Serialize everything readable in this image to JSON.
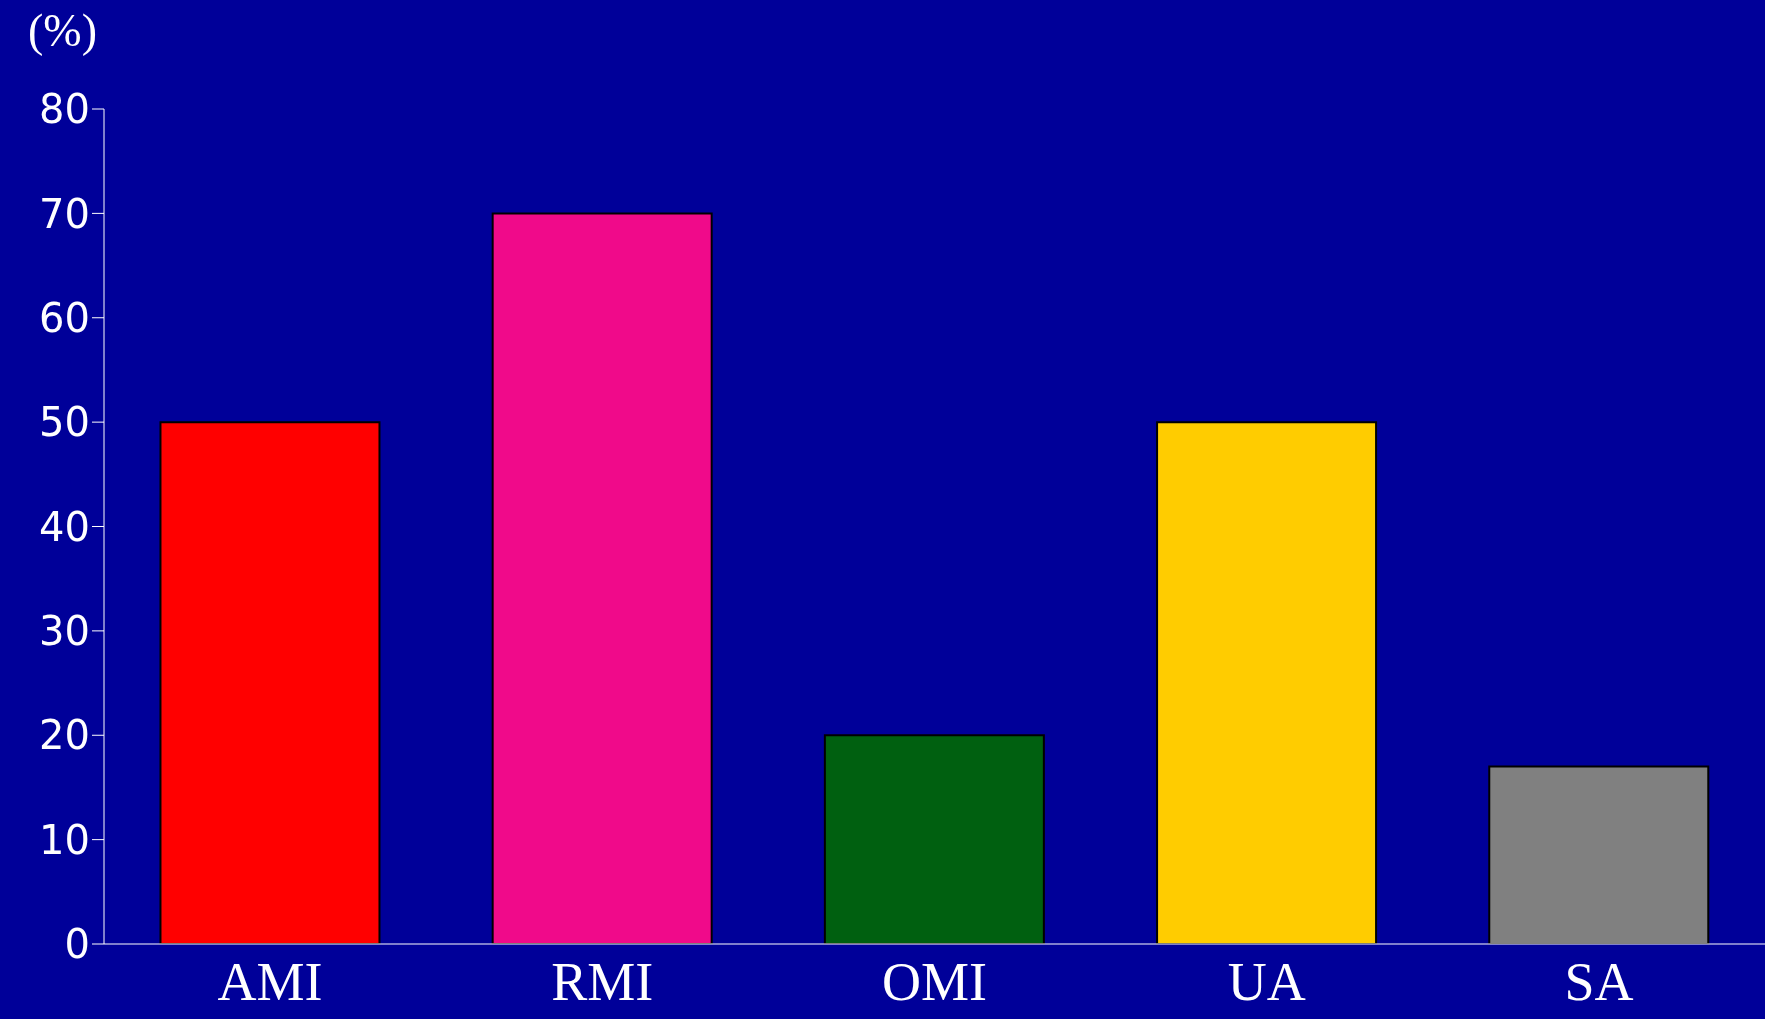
{
  "chart_data": {
    "type": "bar",
    "ylabel": "(%)",
    "categories": [
      "AMI",
      "RMI",
      "OMI",
      "UA",
      "SA"
    ],
    "values": [
      50,
      70,
      20,
      50,
      17
    ],
    "colors": [
      "#ff0000",
      "#f00a8a",
      "#006010",
      "#ffcc00",
      "#808080"
    ],
    "ylim": [
      0,
      80
    ],
    "yticks": [
      0,
      10,
      20,
      30,
      40,
      50,
      60,
      70,
      80
    ],
    "grid": false,
    "legend": false
  }
}
